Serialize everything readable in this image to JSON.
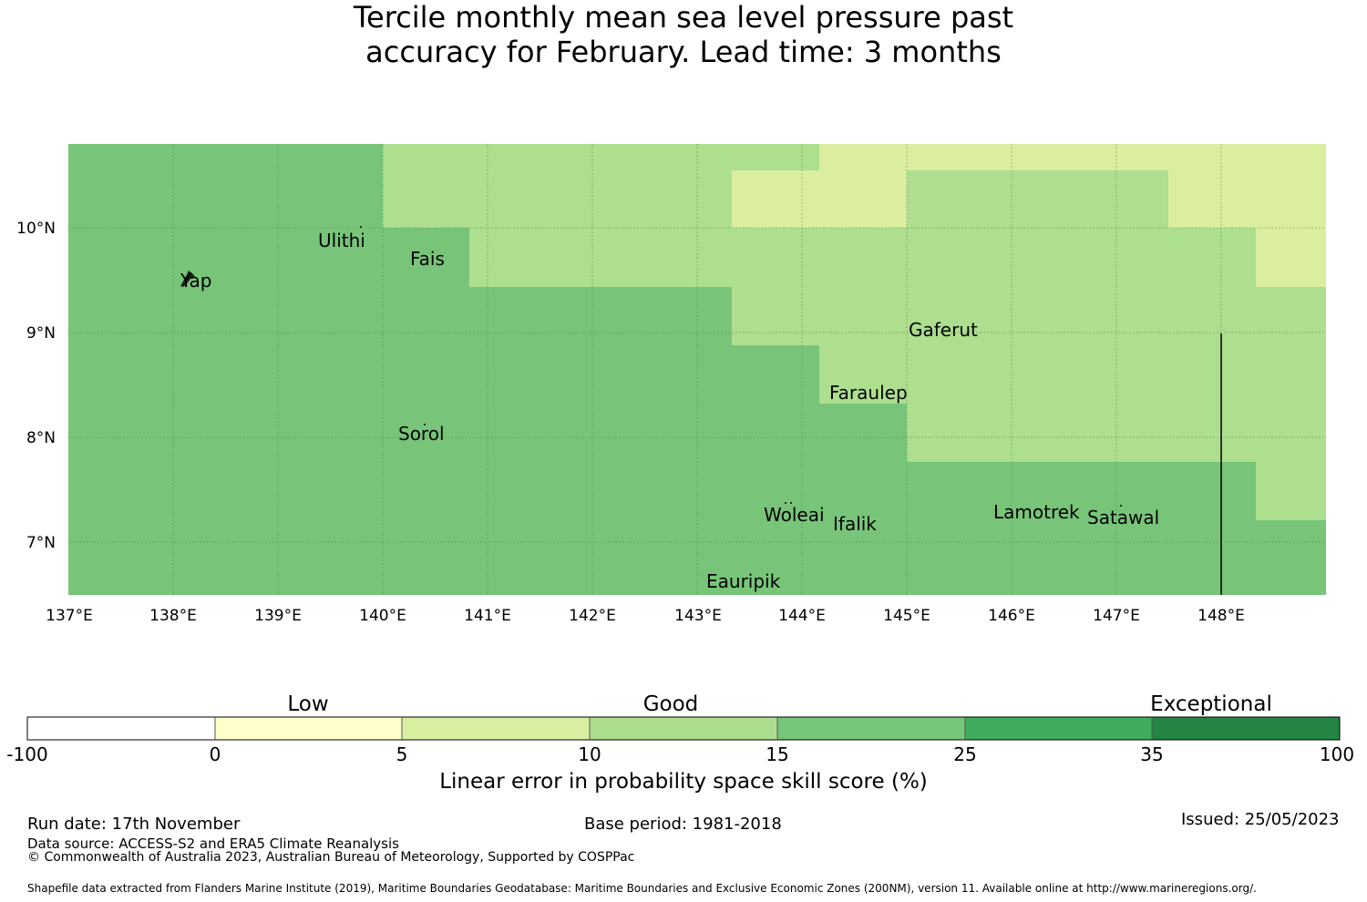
{
  "title": {
    "line1": "Tercile monthly mean sea level pressure past",
    "line2": "accuracy for February. Lead time: 3 months"
  },
  "map": {
    "lon_ticks": [
      "137°E",
      "138°E",
      "139°E",
      "140°E",
      "141°E",
      "142°E",
      "143°E",
      "144°E",
      "145°E",
      "146°E",
      "147°E",
      "148°E"
    ],
    "lat_ticks": [
      "10°N",
      "9°N",
      "8°N",
      "7°N"
    ],
    "places": [
      "Ulithi",
      "Yap",
      "Fais",
      "Gaferut",
      "Faraulep",
      "Sorol",
      "Woleai",
      "Ifalik",
      "Lamotrek",
      "Satawal",
      "Eauripik"
    ],
    "colors": {
      "good_light": "#dbee9f",
      "good_mid": "#addf8f",
      "good_strong": "#78c579"
    }
  },
  "colorbar": {
    "categories": [
      "Low",
      "Good",
      "Exceptional"
    ],
    "ticks": [
      "-100",
      "0",
      "5",
      "10",
      "15",
      "25",
      "35",
      "100"
    ],
    "colors": [
      "#ffffff",
      "#ffffcc",
      "#d9f0a3",
      "#addd8e",
      "#78c679",
      "#41ab5d",
      "#238443"
    ],
    "title": "Linear error in probability space skill score (%)"
  },
  "footer": {
    "run_date": "Run date: 17th November",
    "base_period": "Base period: 1981-2018",
    "issued": "Issued: 25/05/2023",
    "data_source": "Data source: ACCESS-S2 and ERA5 Climate Reanalysis",
    "copyright": "© Commonwealth of Australia 2023, Australian Bureau of Meteorology, Supported by COSPPac",
    "shapefile": "Shapefile data extracted from Flanders Marine Institute (2019), Maritime Boundaries Geodatabase: Maritime Boundaries and Exclusive Economic Zones (200NM), version 11. Available online at http://www.marineregions.org/."
  }
}
